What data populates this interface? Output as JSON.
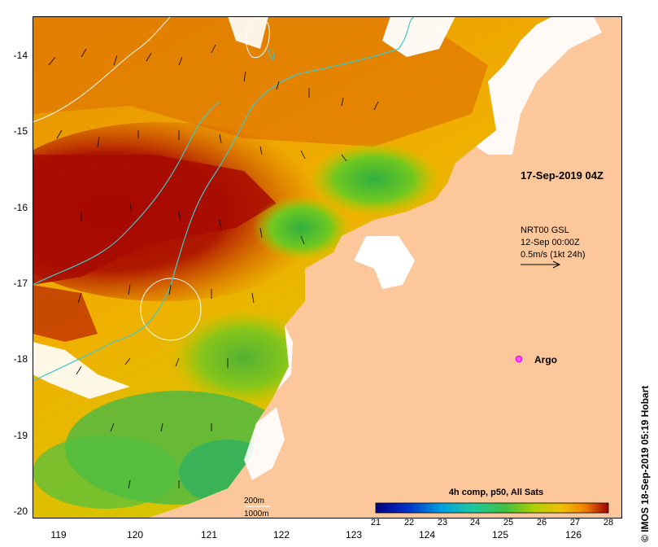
{
  "map": {
    "date": "17-Sep-2019 04Z",
    "y_axis_labels": [
      "-14",
      "-15",
      "-16",
      "-17",
      "-18",
      "-19",
      "-20"
    ],
    "x_axis_labels": [
      "119",
      "120",
      "121",
      "122",
      "123",
      "124",
      "125",
      "126"
    ],
    "lat_range": [
      -20.1,
      -13.5
    ],
    "lon_range": [
      118.6,
      126.7
    ],
    "legend_vector": {
      "line1": "NRT00 GSL",
      "line2": "12-Sep 00:00Z",
      "line3": "0.5m/s (1kt 24h)"
    },
    "argo": {
      "label": "Argo",
      "color": "#ff00ff",
      "lon": 125.25,
      "lat": -18.0
    },
    "colorbar": {
      "title": "4h comp, p50, All Sats",
      "ticks": [
        "21",
        "22",
        "23",
        "24",
        "25",
        "26",
        "27",
        "28"
      ],
      "colors": [
        "#000080",
        "#0033cc",
        "#00a0e0",
        "#20c8a0",
        "#40c040",
        "#b0d000",
        "#f0c000",
        "#f08000",
        "#a00000"
      ]
    },
    "contours": {
      "label_200": "200m",
      "label_1000": "1000m",
      "color_200": "#ffffff",
      "color_1000": "#40c8c8"
    },
    "land_color": "#fbc79b",
    "copyright": "© IMOS 18-Sep-2019 05:19 Hobart"
  }
}
